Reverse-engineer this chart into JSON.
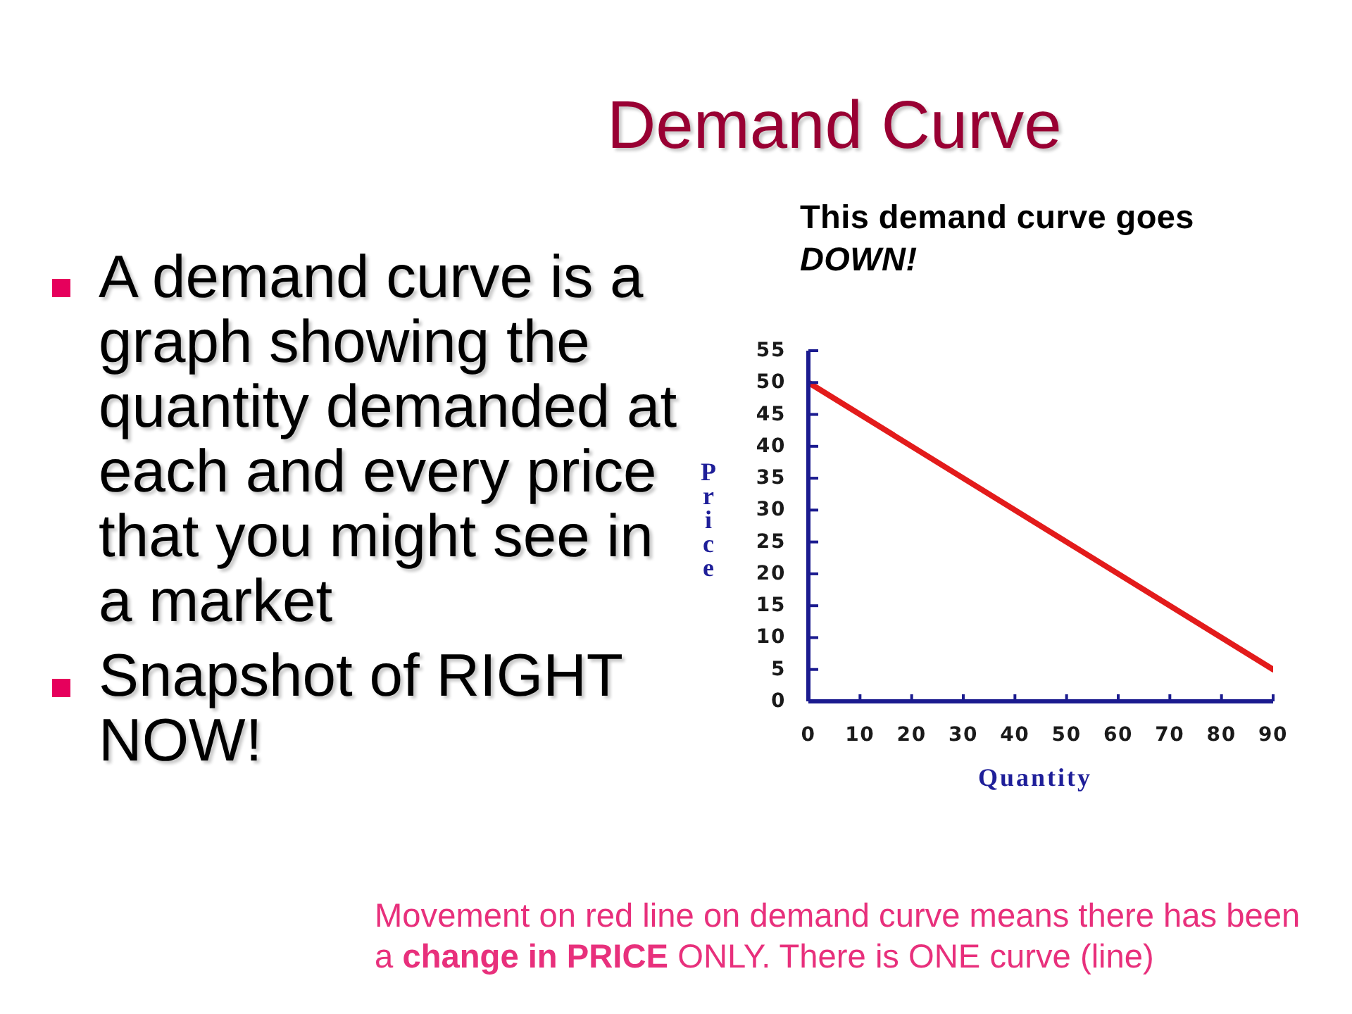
{
  "chart_data": {
    "type": "line",
    "title": "Demand Curve",
    "xlabel": "Quantity",
    "ylabel": "Price",
    "annotations": [
      "This demand curve goes",
      "DOWN!",
      "A demand curve is a graph showing the quantity demanded at each and every price that you might see in a market",
      "Snapshot of RIGHT NOW!",
      "Movement on red line on demand curve means there has been",
      "a",
      "change in PRICE",
      "ONLY. There is ONE curve (line)"
    ],
    "series": [
      {
        "color": "#e31b1b",
        "x": [
          0,
          90
        ],
        "values": [
          50,
          5
        ]
      }
    ],
    "xlim": [
      0,
      90
    ],
    "xticks": [
      0,
      10,
      20,
      30,
      40,
      50,
      60,
      70,
      80,
      90
    ],
    "ylim": [
      0,
      55
    ],
    "yticks": [
      0,
      5,
      10,
      15,
      20,
      25,
      30,
      35,
      40,
      45,
      50,
      55
    ],
    "line_style": "solid"
  }
}
